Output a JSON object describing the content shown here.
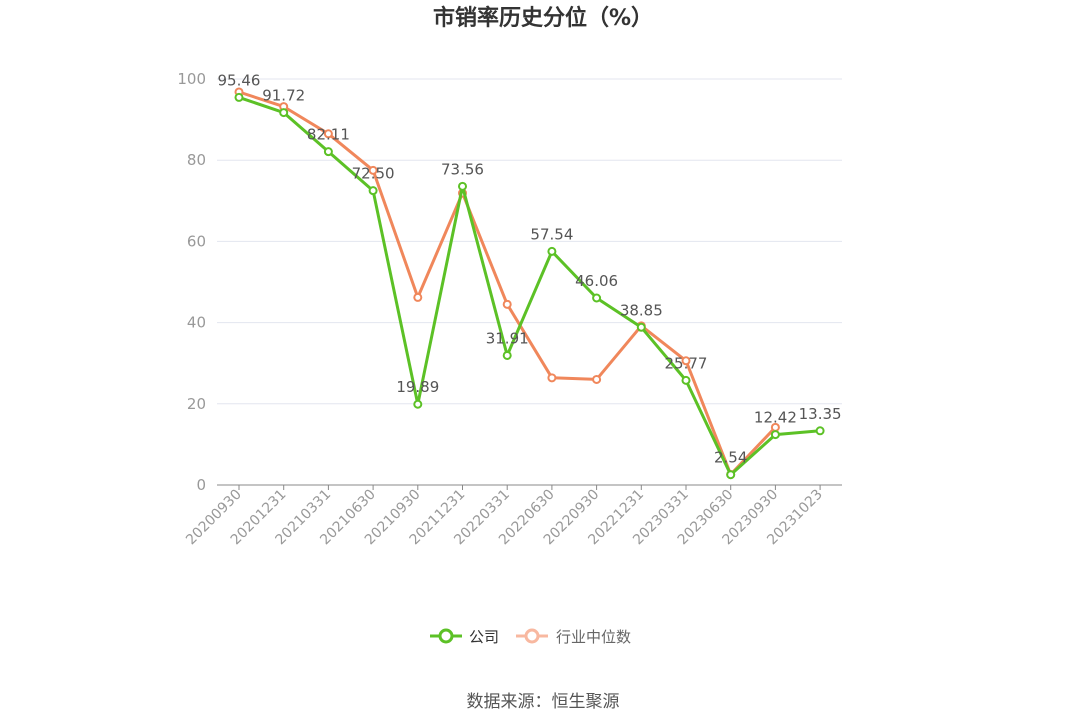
{
  "chart_data": {
    "type": "line",
    "title": "市销率历史分位（%）",
    "categories": [
      "20200930",
      "20201231",
      "20210331",
      "20210630",
      "20210930",
      "20211231",
      "20220331",
      "20220630",
      "20220930",
      "20221231",
      "20230331",
      "20230630",
      "20230930",
      "20231023"
    ],
    "series": [
      {
        "name": "公司",
        "color": "#5cc126",
        "values": [
          95.46,
          91.72,
          82.11,
          72.5,
          19.89,
          73.56,
          31.91,
          57.54,
          46.06,
          38.85,
          25.77,
          2.54,
          12.42,
          13.35
        ],
        "labels": [
          "95.46",
          "91.72",
          "82.11",
          "72.50",
          "19.89",
          "73.56",
          "31.91",
          "57.54",
          "46.06",
          "38.85",
          "25.77",
          "2.54",
          "12.42",
          "13.35"
        ]
      },
      {
        "name": "行业中位数",
        "color": "#f0875b",
        "values": [
          96.8,
          93.2,
          86.5,
          77.5,
          46.2,
          71.9,
          44.5,
          26.4,
          26.0,
          39.2,
          30.6,
          2.6,
          14.2,
          null
        ]
      }
    ],
    "yticks": [
      0,
      20,
      40,
      60,
      80,
      100
    ],
    "ylim": [
      0,
      100
    ],
    "grid": true,
    "legend_position": "bottom",
    "source": "数据来源：恒生聚源"
  }
}
